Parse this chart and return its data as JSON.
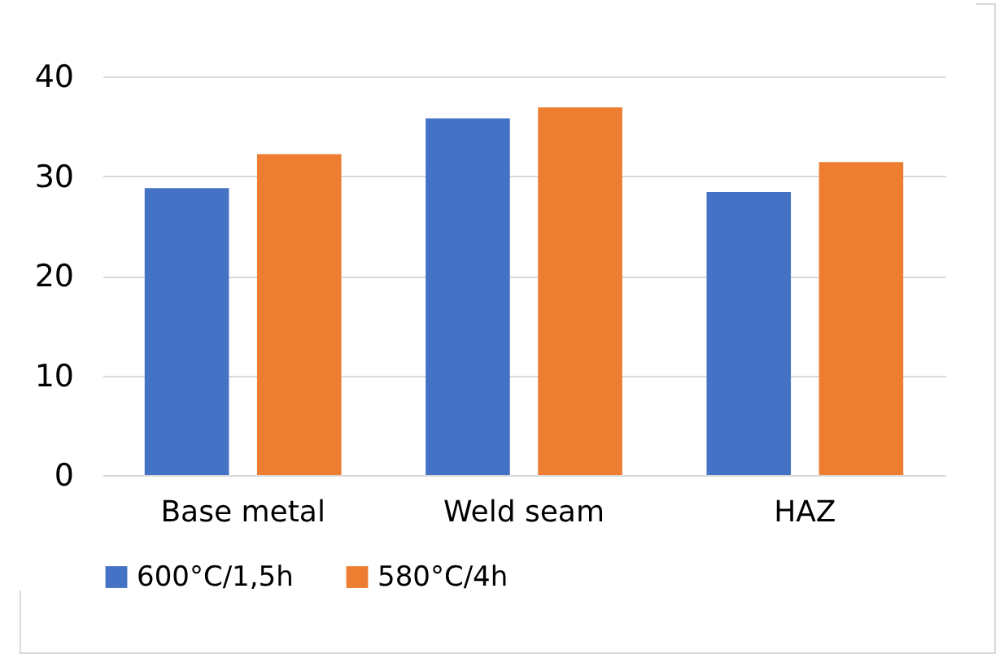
{
  "chart_data": {
    "type": "bar",
    "categories": [
      "Base metal",
      "Weld seam",
      "HAZ"
    ],
    "series": [
      {
        "name": "600°C/1,5h",
        "color": "#4472c4",
        "values": [
          28.8,
          35.8,
          28.4
        ]
      },
      {
        "name": "580°C/4h",
        "color": "#ed7d31",
        "values": [
          32.2,
          36.9,
          31.4
        ]
      }
    ],
    "ylim": [
      0,
      40
    ],
    "yticks": [
      0,
      10,
      20,
      30,
      40
    ],
    "grid": "y",
    "legend": "bottom"
  }
}
